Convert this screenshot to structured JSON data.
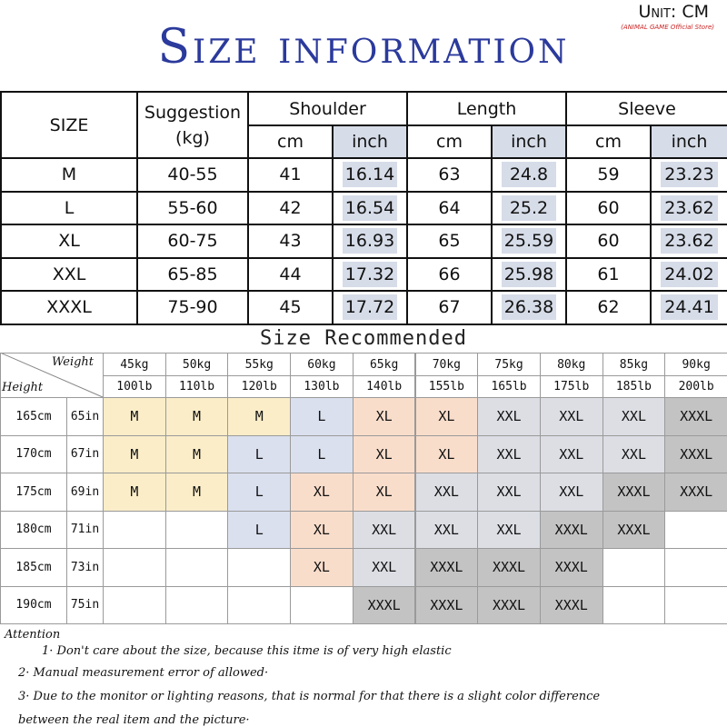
{
  "header": {
    "title": "Size information",
    "unit": "Unit: CM",
    "store": "(ANIMAL GAME Official Store)"
  },
  "size_table": {
    "size": "SIZE",
    "suggestion": "Suggestion",
    "suggestion_unit": "(kg)",
    "groups": [
      "Shoulder",
      "Length",
      "Sleeve"
    ],
    "units": [
      "cm",
      "inch",
      "cm",
      "inch",
      "cm",
      "inch"
    ],
    "rows": [
      [
        "M",
        "40-55",
        41,
        16.14,
        63,
        24.8,
        59,
        23.23
      ],
      [
        "L",
        "55-60",
        42,
        16.54,
        64,
        25.2,
        60,
        23.62
      ],
      [
        "XL",
        "60-75",
        43,
        16.93,
        65,
        25.59,
        60,
        23.62
      ],
      [
        "XXL",
        "65-85",
        44,
        17.32,
        66,
        25.98,
        61,
        24.02
      ],
      [
        "XXXL",
        "75-90",
        45,
        17.72,
        67,
        26.38,
        62,
        24.41
      ]
    ]
  },
  "recommend": {
    "title": "Size Recommended",
    "weight": "Weight",
    "height": "Height",
    "kg": [
      "45kg",
      "50kg",
      "55kg",
      "60kg",
      "65kg",
      "70kg",
      "75kg",
      "80kg",
      "85kg",
      "90kg"
    ],
    "lb": [
      "100lb",
      "110lb",
      "120lb",
      "130lb",
      "140lb",
      "155lb",
      "165lb",
      "175lb",
      "185lb",
      "200lb"
    ],
    "cm": [
      "165cm",
      "170cm",
      "175cm",
      "180cm",
      "185cm",
      "190cm"
    ],
    "in": [
      "65in",
      "67in",
      "69in",
      "71in",
      "73in",
      "75in"
    ],
    "colors": {
      "M": "#faedc8",
      "L": "#dae0ee",
      "XL": "#f9ddcb",
      "XXL": "#dcdee4",
      "XXXL": "#c3c3c3"
    },
    "grid": [
      [
        "M",
        "M",
        "M",
        "L",
        "XL",
        "XL",
        "XXL",
        "XXL",
        "XXL",
        "XXXL"
      ],
      [
        "M",
        "M",
        "L",
        "L",
        "XL",
        "XL",
        "XXL",
        "XXL",
        "XXL",
        "XXXL"
      ],
      [
        "M",
        "M",
        "L",
        "XL",
        "XL",
        "XXL",
        "XXL",
        "XXL",
        "XXXL",
        "XXXL"
      ],
      [
        null,
        null,
        "L",
        "XL",
        "XXL",
        "XXL",
        "XXL",
        "XXXL",
        "XXXL",
        null
      ],
      [
        null,
        null,
        null,
        "XL",
        "XXL",
        "XXXL",
        "XXXL",
        "XXXL",
        null,
        null
      ],
      [
        null,
        null,
        null,
        null,
        "XXXL",
        "XXXL",
        "XXXL",
        "XXXL",
        null,
        null
      ]
    ]
  },
  "notes": {
    "heading": "Attention",
    "items": [
      "1· Don't care about the size, because this itme is of very high elastic",
      "2· Manual measurement error of allowed·",
      "3·  Due to the monitor or lighting reasons, that is normal for that there is a slight color difference between the real item and the picture·"
    ]
  }
}
